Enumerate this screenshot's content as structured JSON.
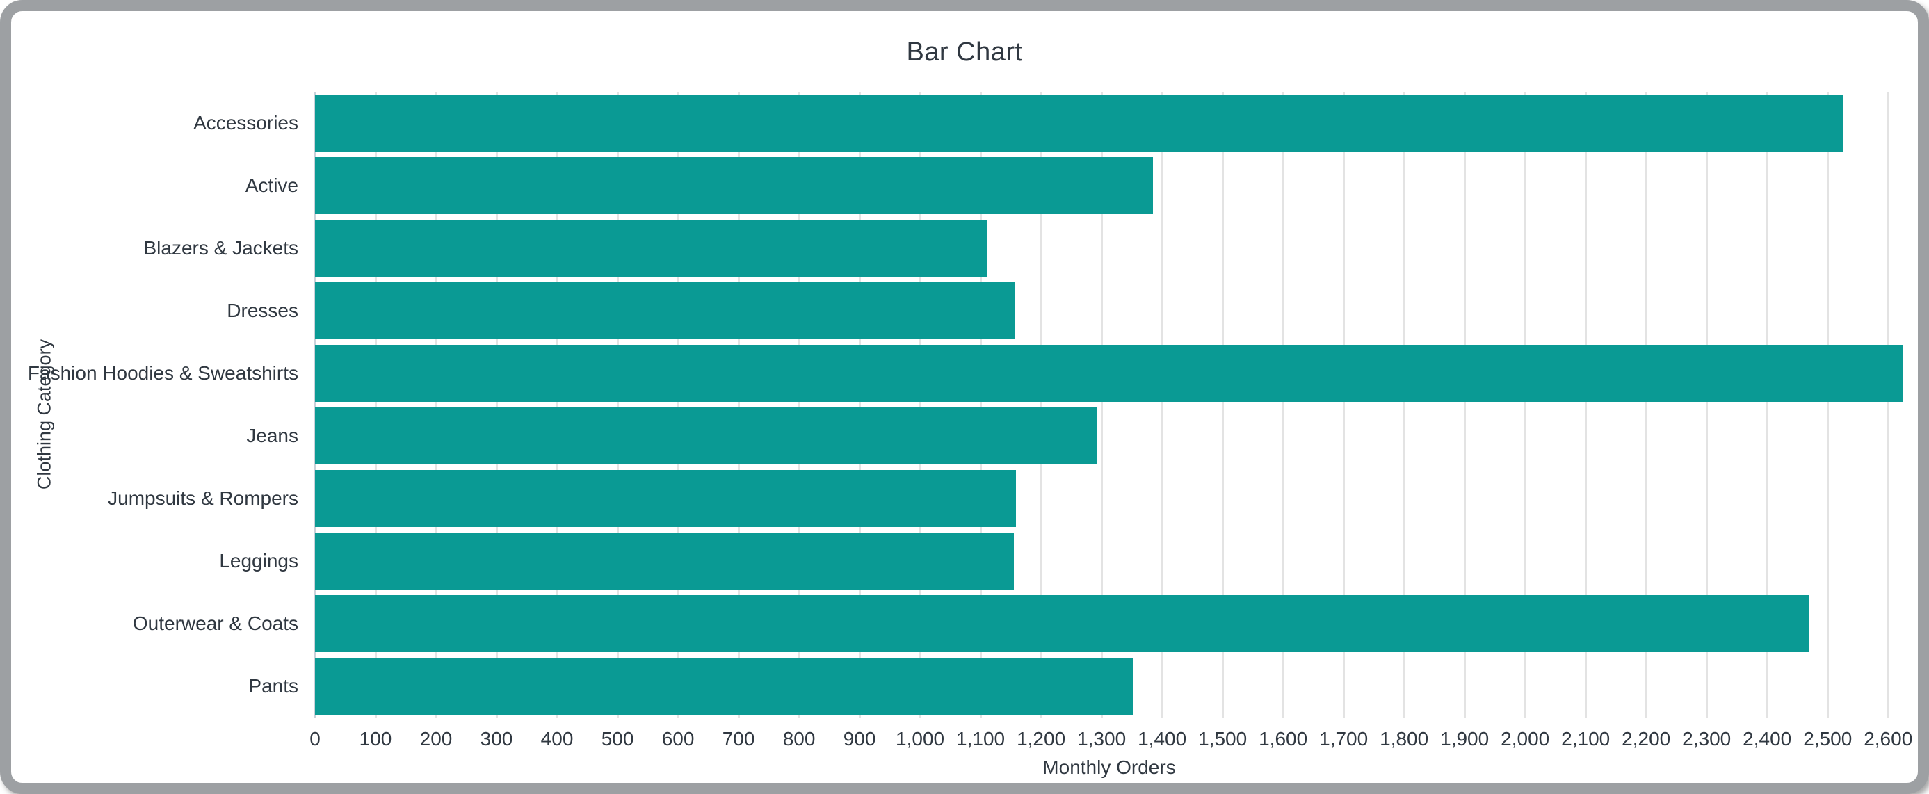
{
  "window": {
    "frame_color": "#9da0a3",
    "background_color": "#ffffff"
  },
  "chart_data": {
    "type": "bar",
    "orientation": "horizontal",
    "title": "Bar Chart",
    "xlabel": "Monthly Orders",
    "ylabel": "Clothing Category",
    "categories": [
      "Accessories",
      "Active",
      "Blazers & Jackets",
      "Dresses",
      "Fashion Hoodies & Sweatshirts",
      "Jeans",
      "Jumpsuits & Rompers",
      "Leggings",
      "Outerwear & Coats",
      "Pants"
    ],
    "values": [
      2525,
      1385,
      1110,
      1157,
      2625,
      1292,
      1158,
      1155,
      2470,
      1352
    ],
    "xlim": [
      0,
      2625
    ],
    "x_tick_interval": 100,
    "x_tick_labels": [
      "0",
      "100",
      "200",
      "300",
      "400",
      "500",
      "600",
      "700",
      "800",
      "900",
      "1,000",
      "1,100",
      "1,200",
      "1,300",
      "1,400",
      "1,500",
      "1,600",
      "1,700",
      "1,800",
      "1,900",
      "2,000",
      "2,100",
      "2,200",
      "2,300",
      "2,400",
      "2,500",
      "2,600"
    ],
    "grid": true,
    "grid_axis": "x",
    "legend": false,
    "bar_color": "#0a9a94",
    "gridline_color": "#e3e3e3",
    "zero_line_color": "#c9d2da",
    "text_color": "#303841"
  }
}
